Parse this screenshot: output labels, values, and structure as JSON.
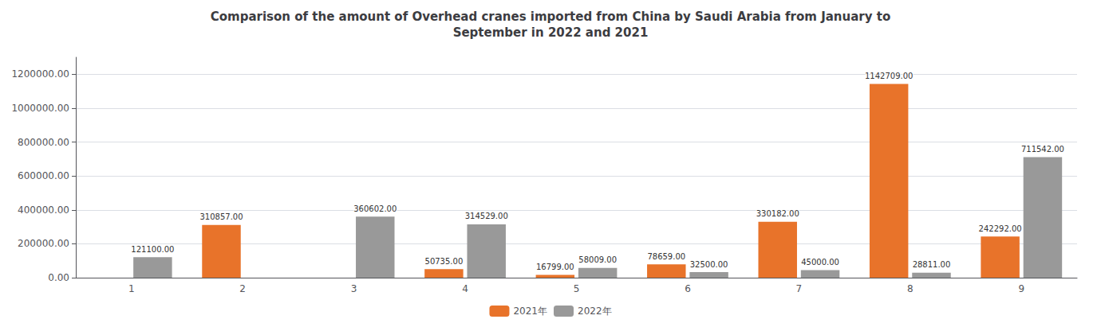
{
  "chart_data": {
    "type": "bar",
    "title": "Comparison of the amount of Overhead cranes imported from China by Saudi Arabia from January to\nSeptember in 2022 and 2021",
    "categories": [
      "1",
      "2",
      "3",
      "4",
      "5",
      "6",
      "7",
      "8",
      "9"
    ],
    "series": [
      {
        "name": "2021年",
        "color": "#e8732a",
        "values": [
          0,
          310857.0,
          0,
          50735.0,
          16799.0,
          78659.0,
          330182.0,
          1142709.0,
          242292.0
        ],
        "value_labels": [
          null,
          "310857.00",
          null,
          "50735.00",
          "16799.00",
          "78659.00",
          "330182.00",
          "1142709.00",
          "242292.00"
        ]
      },
      {
        "name": "2022年",
        "color": "#999999",
        "values": [
          121100.0,
          0,
          360602.0,
          314529.0,
          58009.0,
          32500.0,
          45000.0,
          28811.0,
          711542.0
        ],
        "value_labels": [
          "121100.00",
          null,
          "360602.00",
          "314529.00",
          "58009.00",
          "32500.00",
          "45000.00",
          "28811.00",
          "711542.00"
        ]
      }
    ],
    "ylim": [
      0,
      1300000
    ],
    "yticks": [
      {
        "value": 0,
        "label": "0.00"
      },
      {
        "value": 200000,
        "label": "200000.00"
      },
      {
        "value": 400000,
        "label": "400000.00"
      },
      {
        "value": 600000,
        "label": "600000.00"
      },
      {
        "value": 800000,
        "label": "800000.00"
      },
      {
        "value": 1000000,
        "label": "1000000.00"
      },
      {
        "value": 1200000,
        "label": "1200000.00"
      }
    ],
    "grid": true,
    "legend": "bottom",
    "data_labels": true
  }
}
